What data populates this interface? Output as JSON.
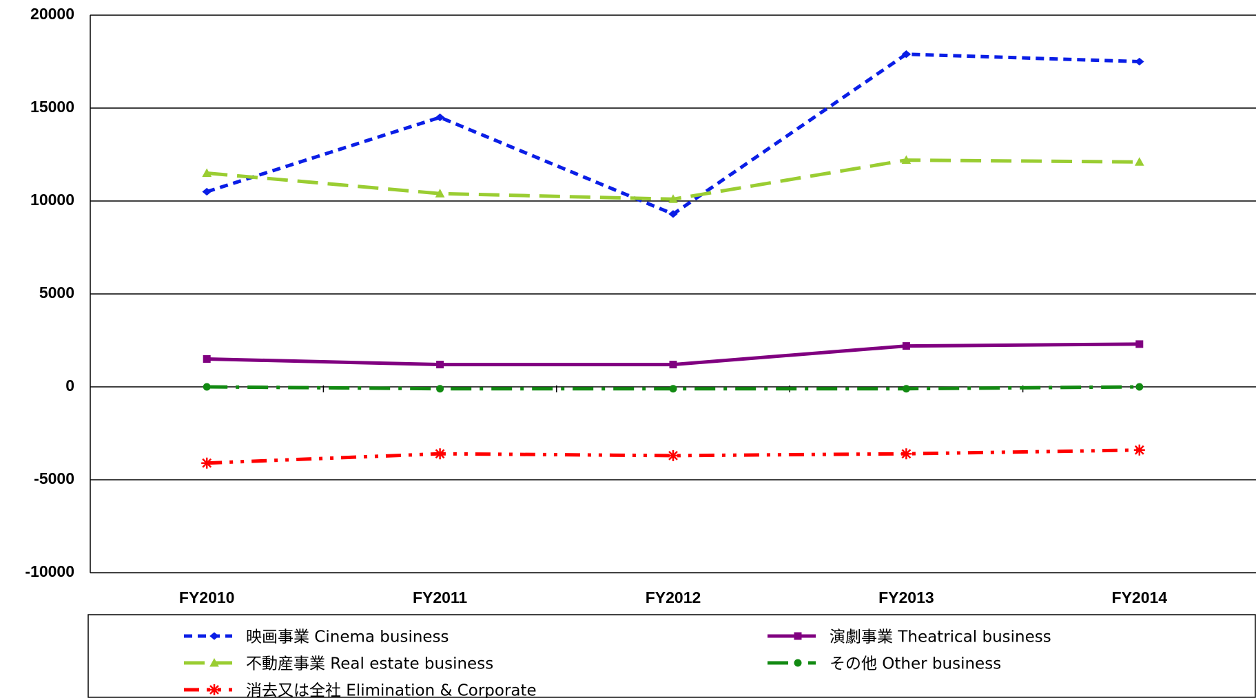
{
  "chart_data": {
    "type": "line",
    "categories": [
      "FY2010",
      "FY2011",
      "FY2012",
      "FY2013",
      "FY2014"
    ],
    "series": [
      {
        "name": "映画事業 Cinema business",
        "color": "#0a1ee6",
        "values": [
          10500,
          14500,
          9300,
          17900,
          17500
        ]
      },
      {
        "name": "演劇事業 Theatrical business",
        "color": "#800080",
        "values": [
          1500,
          1200,
          1200,
          2200,
          2300
        ]
      },
      {
        "name": "不動産事業 Real estate business",
        "color": "#9acd32",
        "values": [
          11500,
          10400,
          10100,
          12200,
          12100
        ]
      },
      {
        "name": "その他 Other business",
        "color": "#128a12",
        "values": [
          0,
          -100,
          -100,
          -100,
          0
        ]
      },
      {
        "name": "消去又は全社 Elimination & Corporate",
        "color": "#ff0000",
        "values": [
          -4100,
          -3600,
          -3700,
          -3600,
          -3400
        ]
      }
    ],
    "ylim": [
      -10000,
      20000
    ],
    "yticks": [
      -10000,
      -5000,
      0,
      5000,
      10000,
      15000,
      20000
    ],
    "grid": true
  }
}
